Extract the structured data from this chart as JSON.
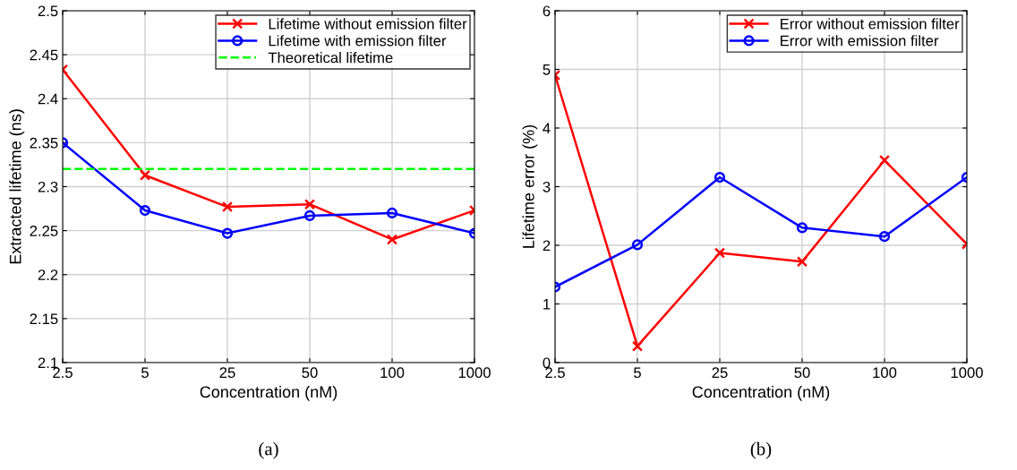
{
  "chart_data": [
    {
      "type": "line",
      "xlabel": "Concentration (nM)",
      "ylabel": "Extracted lifetime (ns)",
      "categories": [
        "2.5",
        "5",
        "25",
        "50",
        "100",
        "1000"
      ],
      "ylim": [
        2.1,
        2.5
      ],
      "yticks": [
        2.1,
        2.15,
        2.2,
        2.25,
        2.3,
        2.35,
        2.4,
        2.45,
        2.5
      ],
      "grid": true,
      "legend": "top right",
      "annotations": [
        "(a)"
      ],
      "series": [
        {
          "name": "Lifetime without emission filter",
          "color": "#ff0000",
          "marker": "cross",
          "values": [
            2.433,
            2.313,
            2.277,
            2.28,
            2.24,
            2.273
          ]
        },
        {
          "name": "Lifetime with emission filter",
          "color": "#0000ff",
          "marker": "circle",
          "values": [
            2.35,
            2.273,
            2.247,
            2.267,
            2.27,
            2.247
          ]
        }
      ],
      "ref_lines": [
        {
          "axis": "y",
          "value": 2.32,
          "label": "Theoretical lifetime",
          "color": "#00ff00",
          "line_style": "dashed"
        }
      ]
    },
    {
      "type": "line",
      "xlabel": "Concentration (nM)",
      "ylabel": "Lifetime error (%)",
      "categories": [
        "2.5",
        "5",
        "25",
        "50",
        "100",
        "1000"
      ],
      "ylim": [
        0,
        6
      ],
      "yticks": [
        0,
        1,
        2,
        3,
        4,
        5,
        6
      ],
      "grid": true,
      "legend": "top right",
      "annotations": [
        "(b)"
      ],
      "series": [
        {
          "name": "Error without emission filter",
          "color": "#ff0000",
          "marker": "cross",
          "values": [
            4.9,
            0.28,
            1.87,
            1.72,
            3.45,
            2.02
          ]
        },
        {
          "name": "Error with emission filter",
          "color": "#0000ff",
          "marker": "circle",
          "values": [
            1.29,
            2.01,
            3.16,
            2.3,
            2.15,
            3.16
          ]
        }
      ]
    }
  ]
}
